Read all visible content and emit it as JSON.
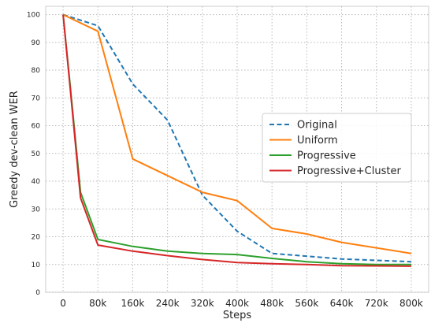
{
  "chart_data": {
    "type": "line",
    "xlabel": "Steps",
    "ylabel": "Greedy dev-clean WER",
    "x_ticks": [
      {
        "v": 0,
        "label": "0"
      },
      {
        "v": 80,
        "label": "80k"
      },
      {
        "v": 160,
        "label": "160k"
      },
      {
        "v": 240,
        "label": "240k"
      },
      {
        "v": 320,
        "label": "320k"
      },
      {
        "v": 400,
        "label": "400k"
      },
      {
        "v": 480,
        "label": "480k"
      },
      {
        "v": 560,
        "label": "560k"
      },
      {
        "v": 640,
        "label": "640k"
      },
      {
        "v": 720,
        "label": "720k"
      },
      {
        "v": 800,
        "label": "800k"
      }
    ],
    "y_ticks": [
      0,
      10,
      20,
      30,
      40,
      50,
      60,
      70,
      80,
      90,
      100
    ],
    "xlim": [
      -40,
      840
    ],
    "ylim": [
      0,
      103
    ],
    "grid": true,
    "legend_position": "center-right",
    "series": [
      {
        "name": "Original",
        "color": "#1f77b4",
        "dashed": true,
        "points": [
          [
            0,
            100
          ],
          [
            80,
            96
          ],
          [
            160,
            75
          ],
          [
            240,
            62
          ],
          [
            320,
            35
          ],
          [
            400,
            22
          ],
          [
            480,
            14
          ],
          [
            560,
            13
          ],
          [
            640,
            12
          ],
          [
            720,
            11.5
          ],
          [
            800,
            11
          ]
        ]
      },
      {
        "name": "Uniform",
        "color": "#ff7f0e",
        "dashed": false,
        "points": [
          [
            0,
            100
          ],
          [
            80,
            94
          ],
          [
            160,
            48
          ],
          [
            320,
            36
          ],
          [
            400,
            33
          ],
          [
            480,
            23
          ],
          [
            560,
            21
          ],
          [
            640,
            18
          ],
          [
            800,
            14
          ]
        ]
      },
      {
        "name": "Progressive",
        "color": "#2ca02c",
        "dashed": false,
        "points": [
          [
            0,
            100
          ],
          [
            16,
            75
          ],
          [
            40,
            36
          ],
          [
            80,
            19
          ],
          [
            160,
            16.5
          ],
          [
            240,
            14.8
          ],
          [
            320,
            14
          ],
          [
            400,
            13.6
          ],
          [
            480,
            12.2
          ],
          [
            560,
            11
          ],
          [
            640,
            10.3
          ],
          [
            720,
            10
          ],
          [
            800,
            10
          ]
        ]
      },
      {
        "name": "Progressive+Cluster",
        "color": "#d62728",
        "dashed": false,
        "points": [
          [
            0,
            100
          ],
          [
            16,
            74
          ],
          [
            40,
            34
          ],
          [
            80,
            17
          ],
          [
            160,
            14.8
          ],
          [
            240,
            13.2
          ],
          [
            320,
            11.8
          ],
          [
            400,
            10.7
          ],
          [
            480,
            10.3
          ],
          [
            560,
            10
          ],
          [
            640,
            9.6
          ],
          [
            720,
            9.5
          ],
          [
            800,
            9.4
          ]
        ]
      }
    ]
  }
}
